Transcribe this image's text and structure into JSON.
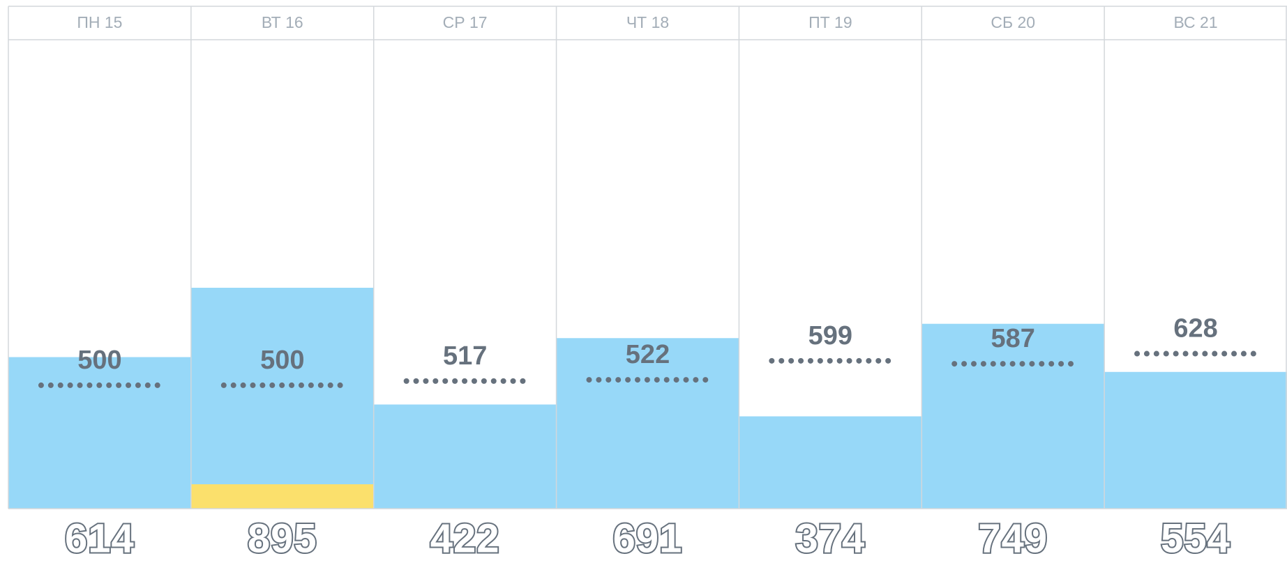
{
  "chart_data": {
    "type": "bar",
    "categories": [
      "ПН 15",
      "ВТ 16",
      "СР 17",
      "ЧТ 18",
      "ПТ 19",
      "СБ 20",
      "ВС 21"
    ],
    "values": [
      614,
      895,
      422,
      691,
      374,
      749,
      554
    ],
    "targets": [
      500,
      500,
      517,
      522,
      599,
      587,
      628
    ],
    "color": "#97d8f8",
    "ylim": [
      0,
      1900
    ]
  }
}
